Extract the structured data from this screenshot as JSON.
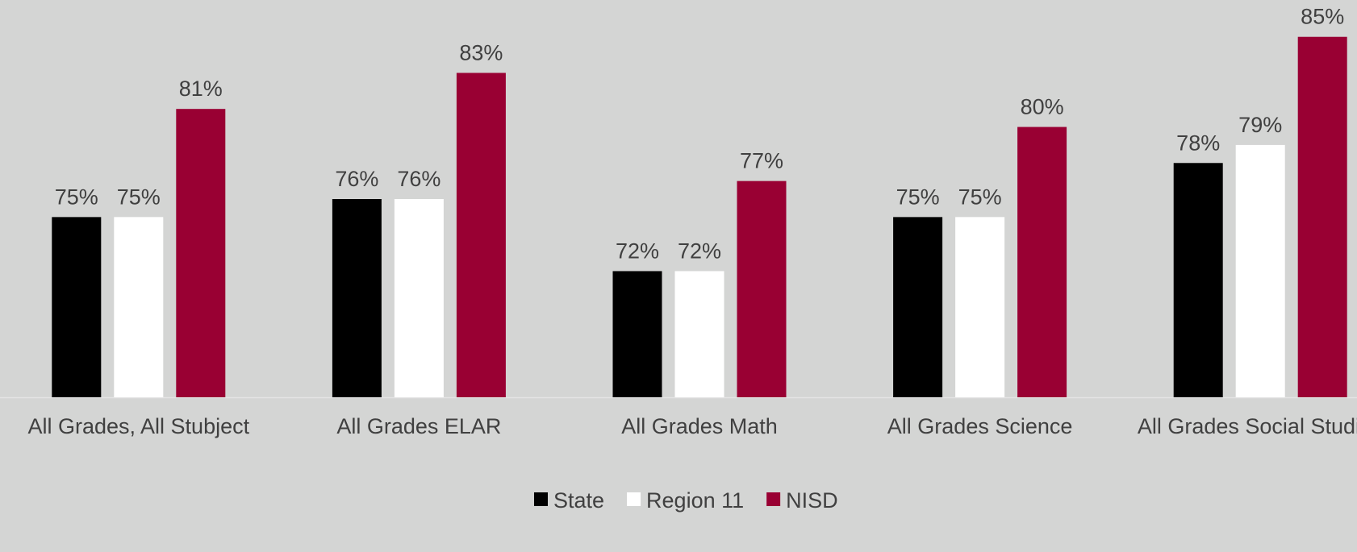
{
  "chart_data": {
    "type": "bar",
    "categories": [
      "All Grades, All Stubject",
      "All Grades ELAR",
      "All Grades Math",
      "All Grades Science",
      "All Grades Social Studies"
    ],
    "series": [
      {
        "name": "State",
        "color": "#000000",
        "values": [
          75,
          76,
          72,
          75,
          78
        ],
        "value_labels": [
          "75%",
          "76%",
          "72%",
          "75%",
          "78%"
        ]
      },
      {
        "name": "Region 11",
        "color": "#ffffff",
        "values": [
          75,
          76,
          72,
          75,
          79
        ],
        "value_labels": [
          "75%",
          "76%",
          "72%",
          "75%",
          "79%"
        ]
      },
      {
        "name": "NISD",
        "color": "#990033",
        "values": [
          81,
          83,
          77,
          80,
          85
        ],
        "value_labels": [
          "81%",
          "83%",
          "77%",
          "80%",
          "85%"
        ]
      }
    ],
    "ylim": [
      65,
      87
    ],
    "legend": "bottom"
  }
}
